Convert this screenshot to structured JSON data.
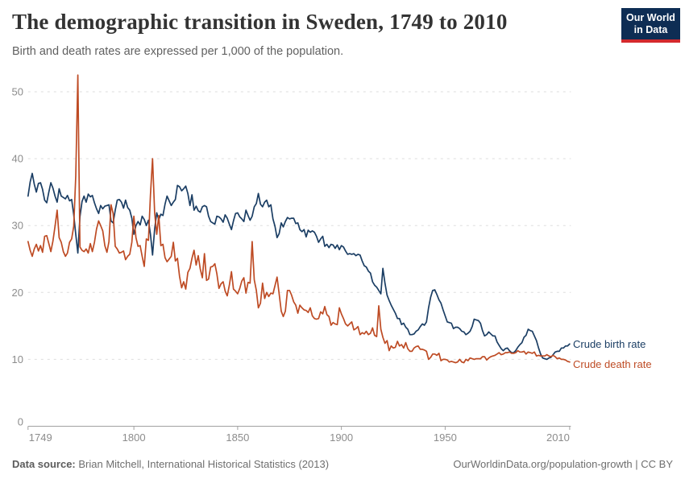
{
  "header": {
    "title": "The demographic transition in Sweden, 1749 to 2010",
    "subtitle": "Birth and death rates are expressed per 1,000 of the population.",
    "logo": {
      "line1": "Our World",
      "line2": "in Data",
      "bg_color": "#0E2D54",
      "accent_color": "#D4292D"
    }
  },
  "footer": {
    "source_label": "Data source:",
    "source_text": " Brian Mitchell, International Historical Statistics (2013)",
    "link_text": "OurWorldinData.org/population-growth | CC BY"
  },
  "chart_data": {
    "type": "line",
    "title": "The demographic transition in Sweden, 1749 to 2010",
    "xlabel": "",
    "ylabel": "",
    "xlim": [
      1749,
      2010
    ],
    "ylim": [
      0,
      50
    ],
    "grid": true,
    "legend_position": "line-ends-right",
    "x_ticks": [
      1749,
      1800,
      1850,
      1900,
      1950,
      2010
    ],
    "y_ticks": [
      0,
      10,
      20,
      30,
      40,
      50
    ],
    "start_year": 1749,
    "end_year": 2010,
    "unit": "per 1,000 of the population",
    "series": [
      {
        "name": "Crude birth rate",
        "color": "#1B3E64",
        "values": [
          34.4,
          36.5,
          37.8,
          36.2,
          35.0,
          36.3,
          36.4,
          35.4,
          33.8,
          33.4,
          35.0,
          36.4,
          35.6,
          34.4,
          33.5,
          35.5,
          34.4,
          34.2,
          34.0,
          34.5,
          33.7,
          33.9,
          31.6,
          28.7,
          25.9,
          31.3,
          33.6,
          34.4,
          33.5,
          34.7,
          34.3,
          34.5,
          33.4,
          32.5,
          31.8,
          33.0,
          32.5,
          32.9,
          33.0,
          33.1,
          30.7,
          30.4,
          32.3,
          33.8,
          33.9,
          33.5,
          32.6,
          33.8,
          32.7,
          32.3,
          31.1,
          28.7,
          30.0,
          30.6,
          30.1,
          31.4,
          30.9,
          30.0,
          30.8,
          28.7,
          25.6,
          29.5,
          31.9,
          30.9,
          31.7,
          31.5,
          33.2,
          34.4,
          33.7,
          33.0,
          33.5,
          33.9,
          36.0,
          35.8,
          35.2,
          35.5,
          35.9,
          34.8,
          33.0,
          34.6,
          32.3,
          32.9,
          32.2,
          32.0,
          32.8,
          33.0,
          32.8,
          31.4,
          30.6,
          30.4,
          30.2,
          31.4,
          31.3,
          31.0,
          30.5,
          31.6,
          31.1,
          30.2,
          29.4,
          30.7,
          31.8,
          31.9,
          31.3,
          31.0,
          30.6,
          32.3,
          31.5,
          30.8,
          31.4,
          32.8,
          33.3,
          34.8,
          33.2,
          32.8,
          33.5,
          33.8,
          32.8,
          33.1,
          31.0,
          29.9,
          28.2,
          28.8,
          30.4,
          29.8,
          30.6,
          31.2,
          31.0,
          31.1,
          31.1,
          30.3,
          30.4,
          29.4,
          29.1,
          29.4,
          28.3,
          29.3,
          29.0,
          29.2,
          29.0,
          28.4,
          27.5,
          28.0,
          28.4,
          26.9,
          27.2,
          26.7,
          27.2,
          27.1,
          26.6,
          27.1,
          26.4,
          27.0,
          26.8,
          26.2,
          25.7,
          25.8,
          25.7,
          25.8,
          25.5,
          25.7,
          25.6,
          24.7,
          24.0,
          23.8,
          23.2,
          22.9,
          21.6,
          21.1,
          20.8,
          20.3,
          19.8,
          23.6,
          21.4,
          19.6,
          18.8,
          18.1,
          17.5,
          16.9,
          16.1,
          16.1,
          15.2,
          15.4,
          14.8,
          14.5,
          13.7,
          13.7,
          13.8,
          14.2,
          14.4,
          14.9,
          15.3,
          15.1,
          15.6,
          17.7,
          19.3,
          20.3,
          20.4,
          19.7,
          18.9,
          18.4,
          17.4,
          16.5,
          15.6,
          15.5,
          15.4,
          14.6,
          14.8,
          14.8,
          14.6,
          14.2,
          14.1,
          13.7,
          13.9,
          14.2,
          14.9,
          16.0,
          15.9,
          15.8,
          15.4,
          14.3,
          13.5,
          13.7,
          14.1,
          13.8,
          13.5,
          13.5,
          12.6,
          12.1,
          11.6,
          11.3,
          11.6,
          11.7,
          11.3,
          11.0,
          11.0,
          11.3,
          11.8,
          12.2,
          12.5,
          13.3,
          13.6,
          14.5,
          14.3,
          14.2,
          13.5,
          12.8,
          11.7,
          10.8,
          10.2,
          10.1,
          10.0,
          10.2,
          10.3,
          10.7,
          11.1,
          11.2,
          11.2,
          11.7,
          11.7,
          12.0,
          12.0,
          12.3
        ]
      },
      {
        "name": "Crude death rate",
        "color": "#BE4B24",
        "values": [
          27.6,
          26.3,
          25.4,
          26.5,
          27.2,
          26.2,
          27.0,
          26.0,
          28.4,
          28.5,
          27.3,
          26.1,
          27.7,
          29.9,
          32.3,
          28.2,
          27.5,
          26.1,
          25.4,
          25.9,
          27.5,
          28.0,
          29.9,
          37.4,
          52.5,
          26.8,
          26.3,
          26.1,
          26.5,
          25.9,
          27.3,
          26.1,
          27.5,
          29.5,
          30.7,
          30.0,
          29.2,
          27.0,
          26.0,
          27.6,
          33.1,
          31.8,
          26.9,
          26.5,
          25.9,
          26.0,
          26.2,
          24.9,
          25.4,
          25.7,
          27.5,
          31.4,
          28.2,
          26.9,
          27.0,
          25.4,
          23.9,
          28.0,
          27.8,
          34.6,
          40.0,
          31.9,
          28.7,
          31.5,
          27.0,
          27.2,
          25.2,
          24.6,
          25.0,
          25.4,
          27.5,
          24.7,
          25.1,
          22.4,
          20.7,
          21.6,
          20.5,
          23.0,
          23.6,
          25.1,
          26.3,
          24.1,
          25.5,
          23.5,
          22.2,
          25.8,
          21.8,
          22.0,
          23.8,
          23.9,
          24.3,
          22.8,
          20.6,
          21.3,
          21.6,
          20.2,
          19.5,
          21.1,
          23.1,
          20.5,
          20.2,
          19.8,
          20.6,
          21.7,
          22.2,
          19.9,
          21.5,
          21.4,
          27.6,
          21.9,
          20.3,
          17.7,
          18.4,
          21.4,
          19.1,
          20.0,
          19.4,
          19.9,
          19.8,
          21.0,
          22.3,
          19.8,
          17.2,
          16.4,
          17.2,
          20.3,
          20.3,
          19.6,
          18.6,
          18.1,
          16.9,
          18.1,
          17.7,
          17.4,
          17.3,
          17.0,
          17.7,
          16.5,
          16.1,
          16.0,
          16.1,
          17.1,
          16.8,
          17.9,
          16.7,
          16.4,
          15.1,
          15.5,
          15.3,
          15.2,
          17.7,
          16.8,
          16.1,
          15.3,
          15.0,
          15.3,
          15.6,
          14.4,
          14.6,
          14.9,
          13.7,
          14.0,
          13.8,
          14.2,
          13.7,
          13.9,
          14.7,
          13.6,
          13.4,
          18.0,
          14.5,
          13.3,
          12.4,
          12.8,
          11.3,
          12.0,
          11.7,
          11.8,
          12.7,
          12.0,
          12.2,
          11.7,
          12.5,
          11.6,
          11.2,
          11.2,
          11.7,
          11.9,
          12.0,
          11.5,
          11.5,
          11.4,
          11.2,
          10.0,
          10.3,
          10.8,
          10.8,
          10.6,
          10.9,
          9.8,
          10.0,
          10.0,
          9.9,
          9.6,
          9.7,
          9.6,
          9.5,
          9.6,
          10.0,
          9.6,
          9.5,
          10.0,
          9.8,
          10.2,
          10.1,
          10.0,
          10.1,
          10.1,
          10.1,
          10.4,
          10.4,
          9.9,
          10.2,
          10.4,
          10.5,
          10.6,
          10.8,
          11.0,
          10.7,
          10.8,
          11.0,
          11.0,
          11.1,
          10.9,
          10.9,
          11.0,
          11.3,
          11.1,
          11.1,
          11.2,
          10.8,
          11.1,
          11.0,
          10.9,
          11.1,
          10.5,
          10.6,
          10.5,
          10.5,
          10.5,
          10.7,
          10.5,
          10.4,
          10.6,
          10.4,
          10.1,
          10.2,
          10.0,
          10.0,
          9.9,
          9.7,
          9.6
        ]
      }
    ]
  },
  "colors": {
    "grid": "#dedede",
    "axis": "#a1a1a1",
    "tick_label": "#8c8c8c"
  }
}
